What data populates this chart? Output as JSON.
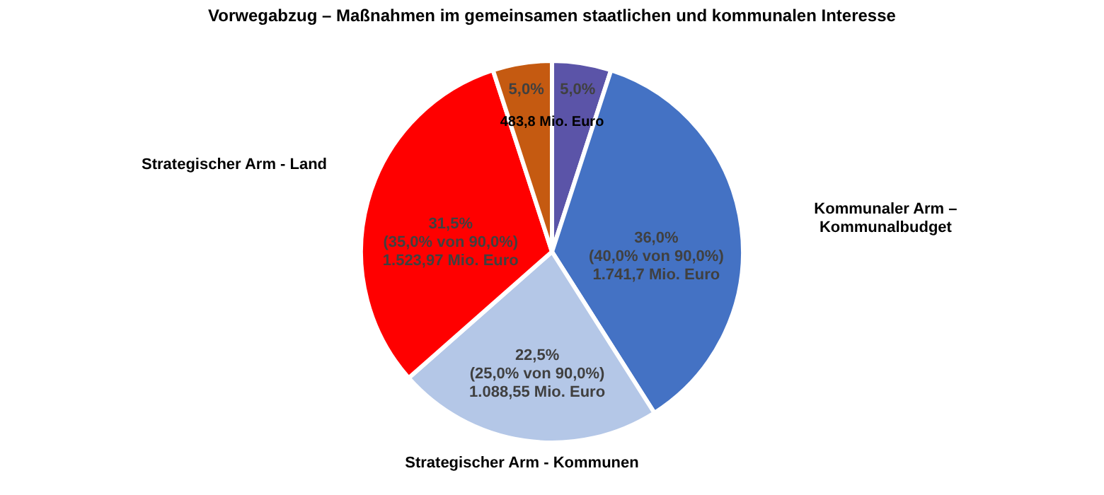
{
  "chart_data": {
    "type": "pie",
    "categories": [
      null,
      "Kommunaler Arm –\nKommunalbudget",
      "Strategischer Arm - Kommunen",
      "Strategischer Arm - Land",
      null
    ],
    "values": [
      5,
      36,
      22.5,
      31.5,
      5
    ],
    "colors": [
      "#5b54a8",
      "#4472c4",
      "#b4c7e7",
      "#ff0000",
      "#c55a11"
    ],
    "value_labels": [
      "5,0%",
      "36,0%\n(40,0% von 90,0%)\n1.741,7 Mio. Euro",
      "22,5%\n(25,0% von 90,0%)\n1.088,55 Mio. Euro",
      "31,5%\n(35,0% von 90,0%)\n1.523,97 Mio. Euro",
      "5,0%"
    ],
    "annotations": [
      "Vorwegabzug – Maßnahmen im gemeinsamen staatlichen und kommunalen Interesse",
      "483,8 Mio. Euro"
    ]
  }
}
